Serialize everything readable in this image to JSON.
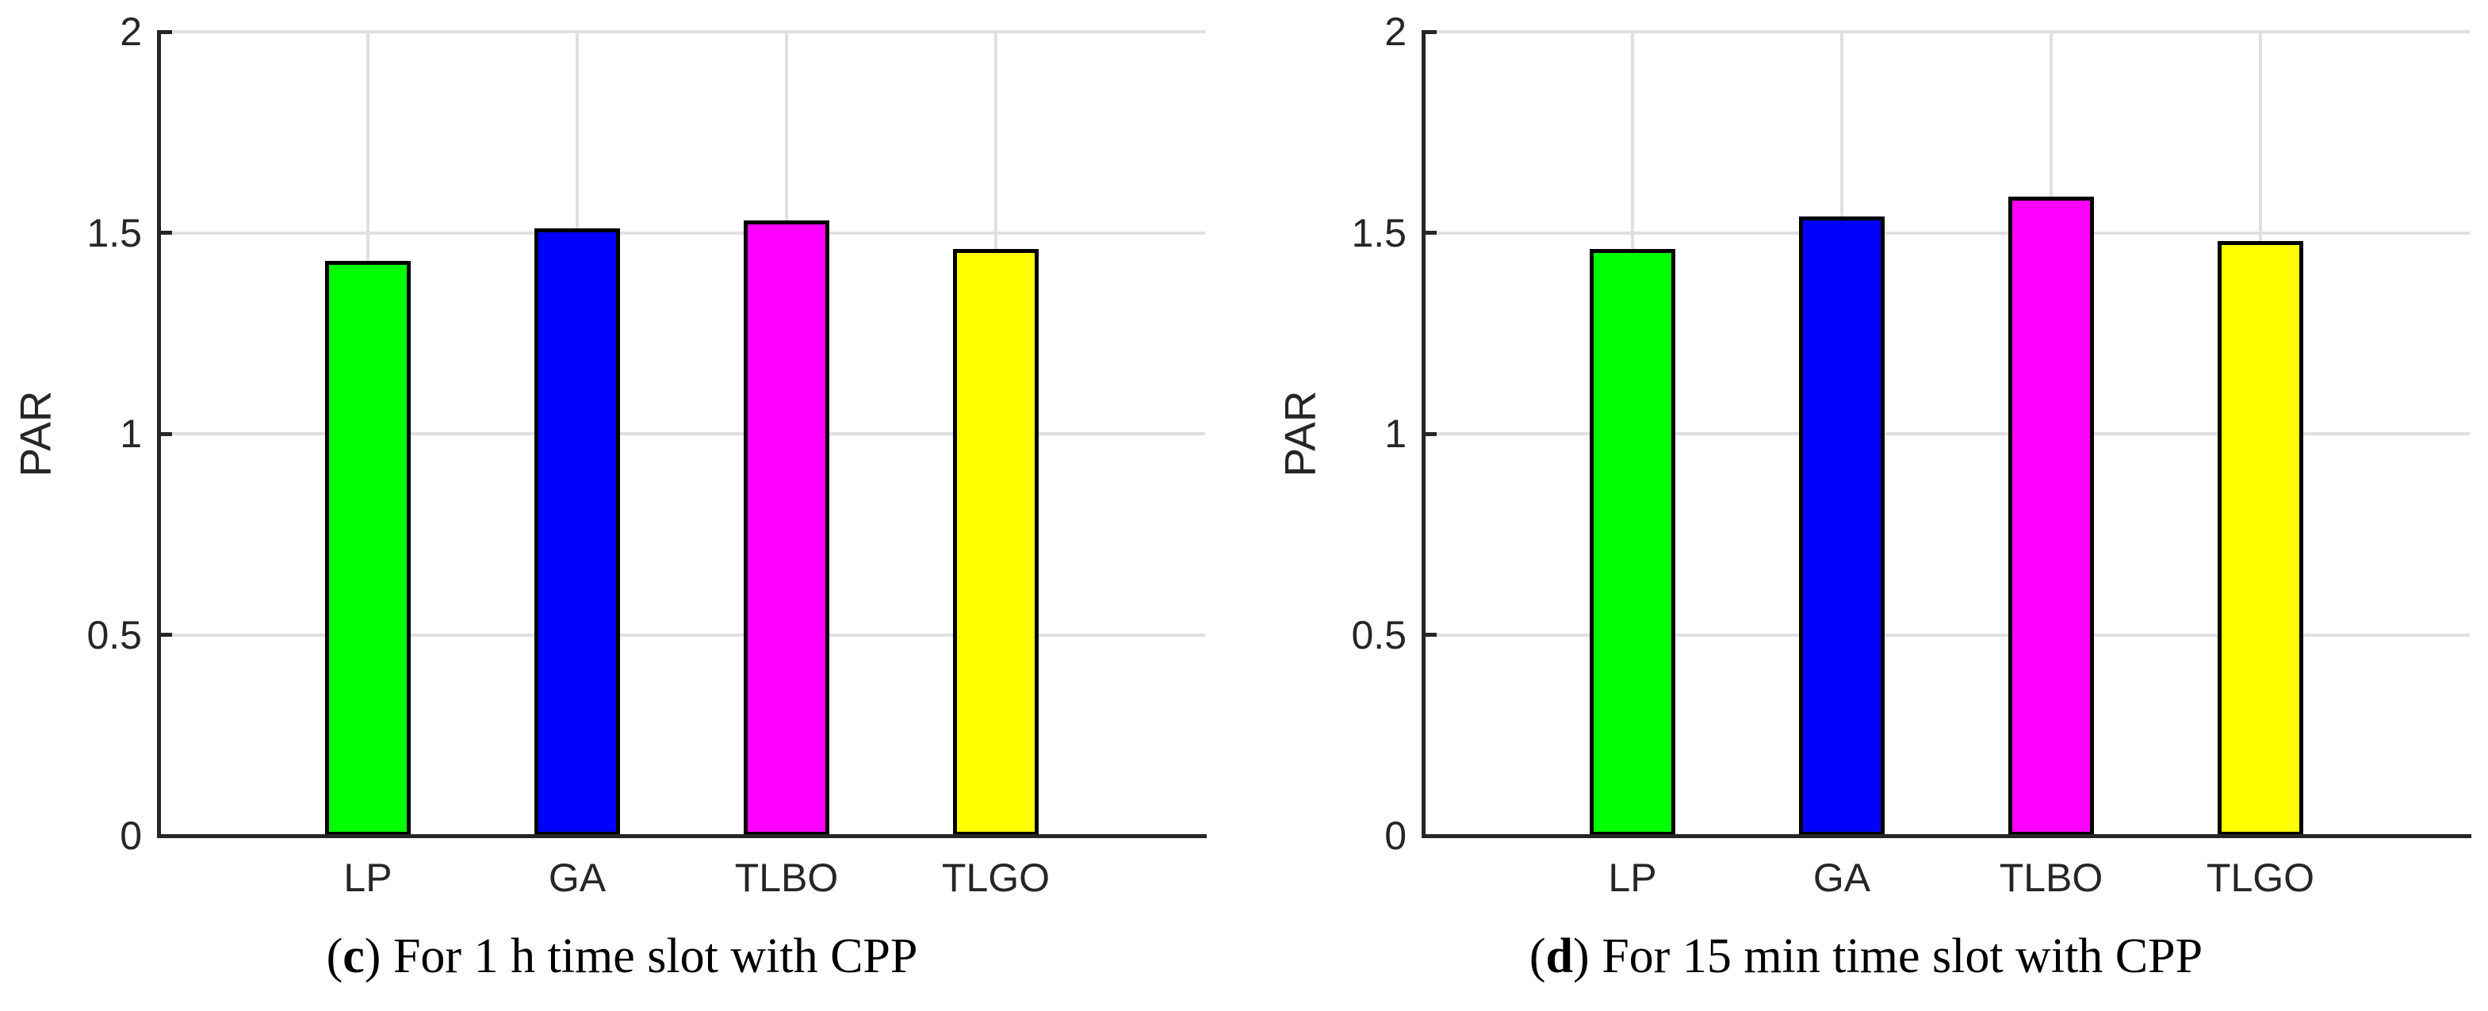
{
  "styles": {
    "background": "#ffffff",
    "grid_color": "#e0e0e0",
    "axis_color": "#262626",
    "tick_label_color": "#262626",
    "bar_edge_color": "#000000",
    "caption_color": "#000000"
  },
  "chart_data": [
    {
      "type": "bar",
      "panel_label": "c",
      "caption_open": "(",
      "caption_close": ") ",
      "caption_text": "For 1 h time slot with CPP",
      "title": "",
      "xlabel": "",
      "ylabel": "PAR",
      "categories": [
        "LP",
        "GA",
        "TLBO",
        "TLGO"
      ],
      "values": [
        1.43,
        1.51,
        1.53,
        1.46
      ],
      "bar_colors": [
        "#00ff00",
        "#0000ff",
        "#ff00ff",
        "#ffff00"
      ],
      "ylim": [
        0,
        2
      ],
      "yticks": [
        0,
        0.5,
        1,
        1.5,
        2
      ],
      "ytick_labels": [
        "0",
        "0.5",
        "1",
        "1.5",
        "2"
      ],
      "grid": "on",
      "legend": "none"
    },
    {
      "type": "bar",
      "panel_label": "d",
      "caption_open": "(",
      "caption_close": ") ",
      "caption_text": "For 15 min time slot with CPP",
      "title": "",
      "xlabel": "",
      "ylabel": "PAR",
      "categories": [
        "LP",
        "GA",
        "TLBO",
        "TLGO"
      ],
      "values": [
        1.46,
        1.54,
        1.59,
        1.48
      ],
      "bar_colors": [
        "#00ff00",
        "#0000ff",
        "#ff00ff",
        "#ffff00"
      ],
      "ylim": [
        0,
        2
      ],
      "yticks": [
        0,
        0.5,
        1,
        1.5,
        2
      ],
      "ytick_labels": [
        "0",
        "0.5",
        "1",
        "1.5",
        "2"
      ],
      "grid": "on",
      "legend": "none"
    }
  ]
}
